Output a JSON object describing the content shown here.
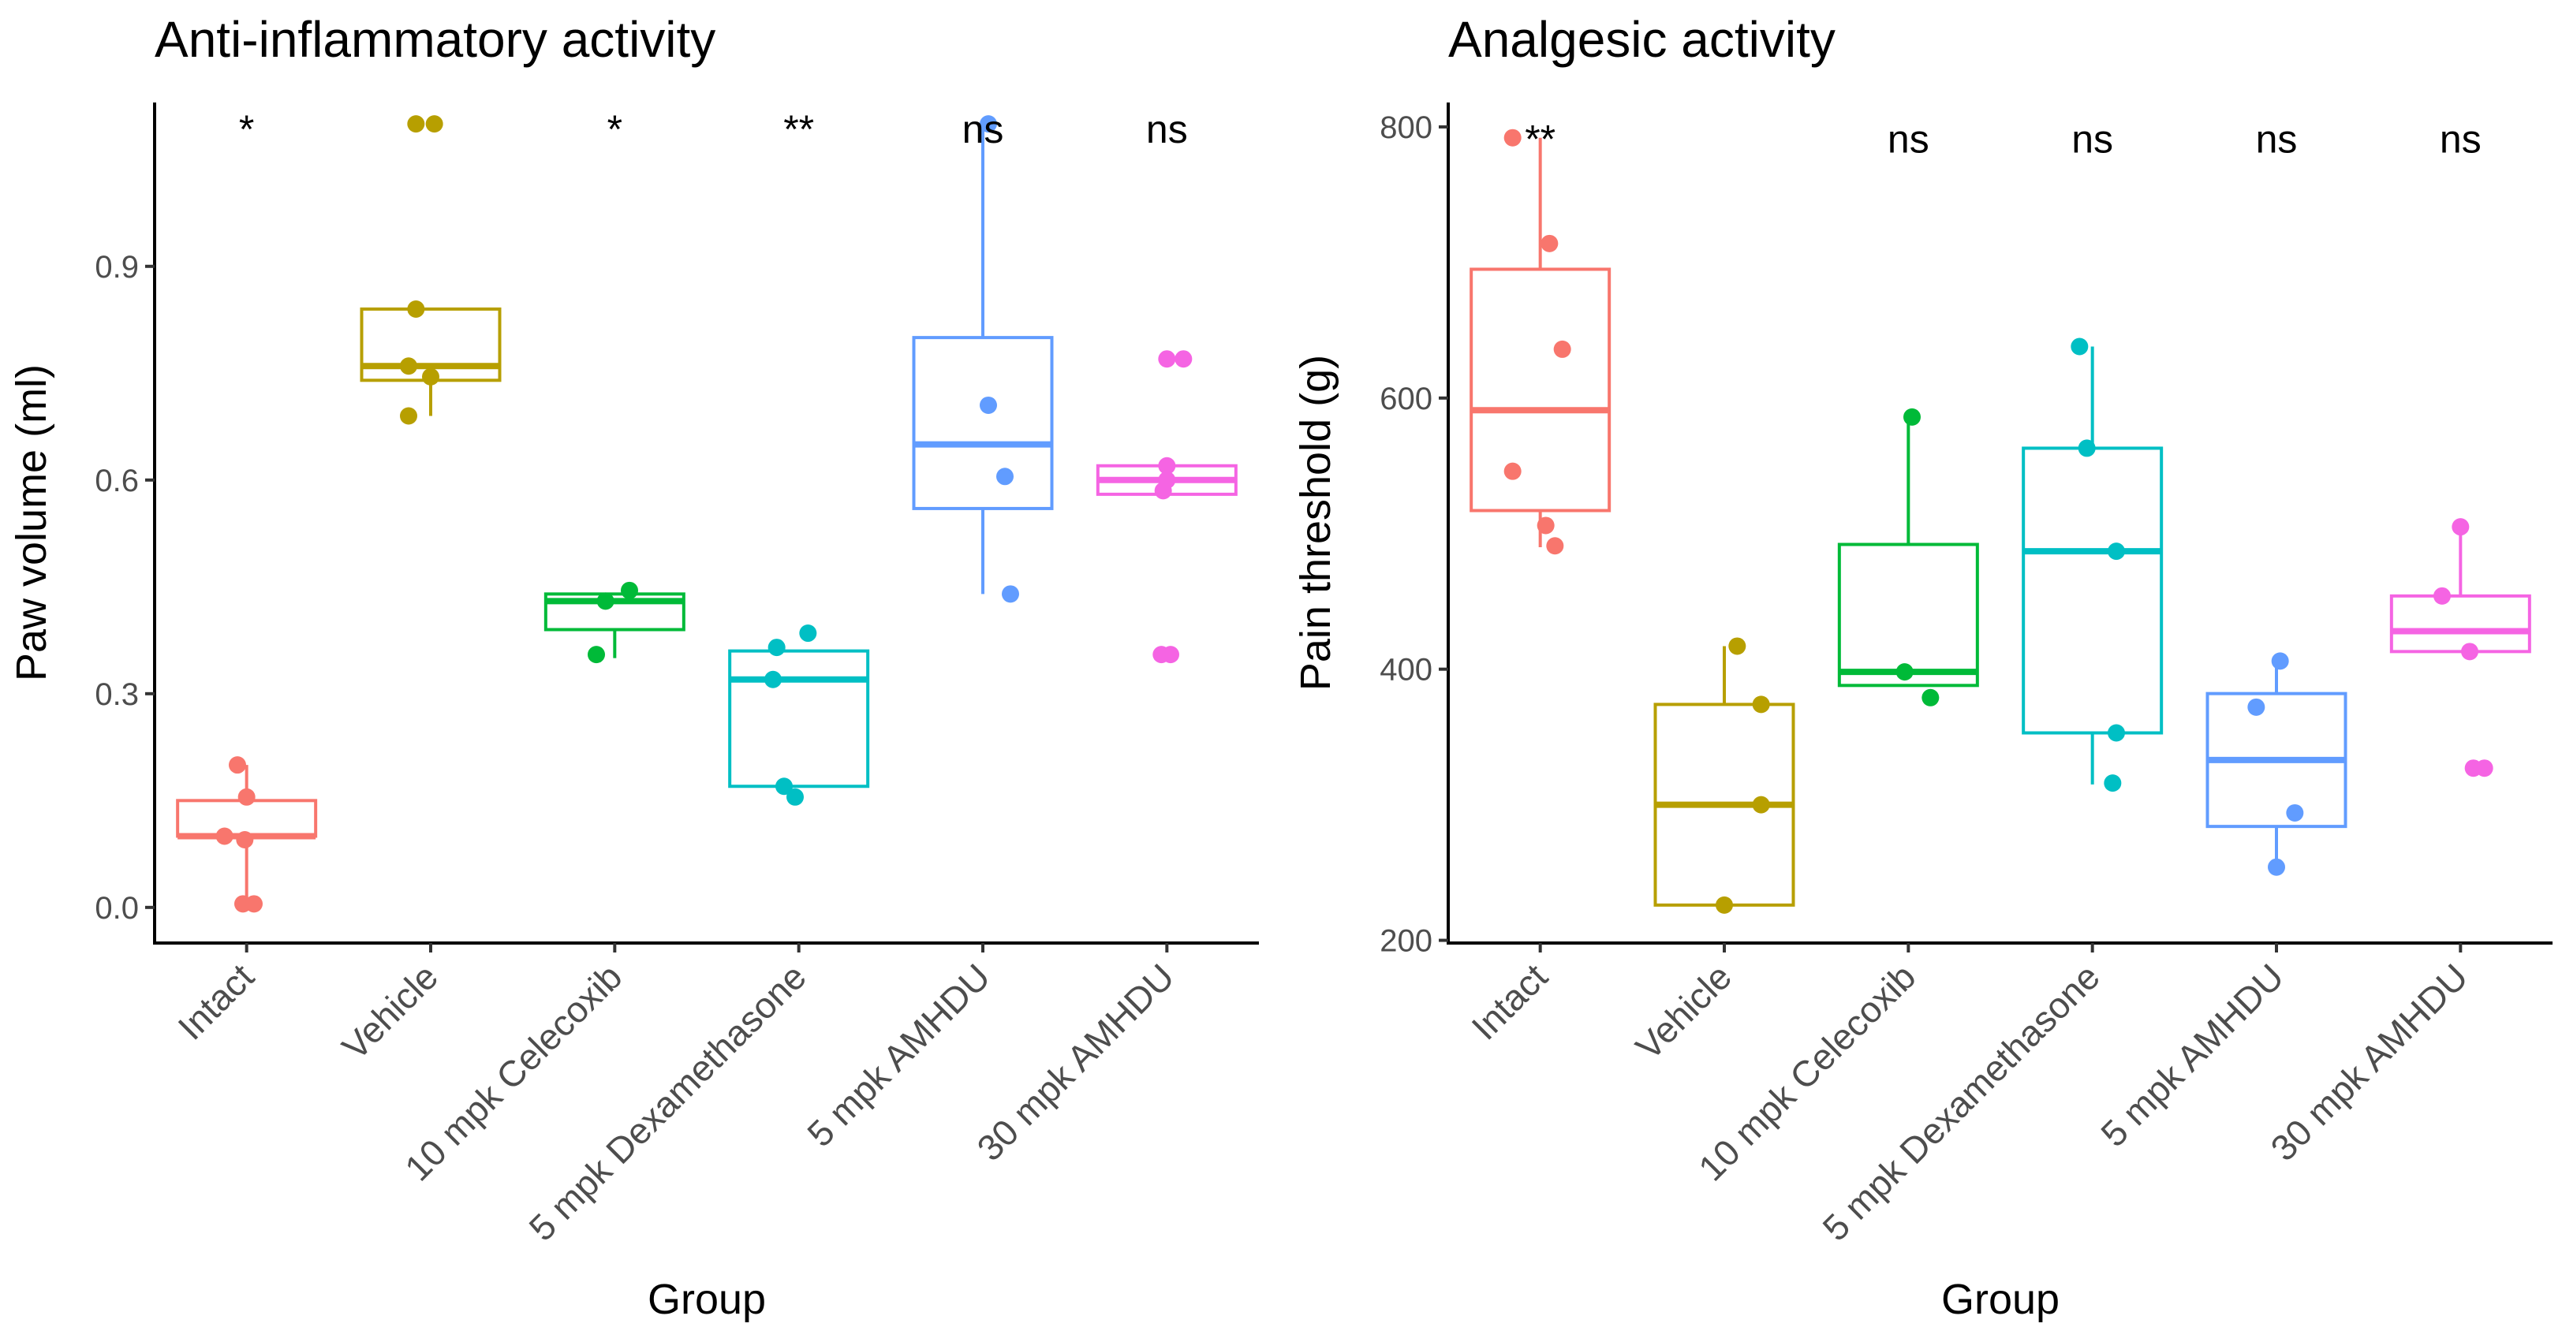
{
  "chart_data": [
    {
      "type": "box",
      "title": "Anti-inflammatory activity",
      "xlabel": "Group",
      "ylabel": "Paw volume (ml)",
      "ylim": [
        -0.05,
        1.13
      ],
      "yticks": [
        0.0,
        0.3,
        0.6,
        0.9
      ],
      "ytick_labels": [
        "0.0",
        "0.3",
        "0.6",
        "0.9"
      ],
      "categories": [
        "Intact",
        "Vehicle",
        "10 mpk Celecoxib",
        "5 mpk Dexamethasone",
        "5 mpk AMHDU",
        "30 mpk AMHDU"
      ],
      "colors": [
        "#F8766D",
        "#B79F00",
        "#00BA38",
        "#00BFC4",
        "#619CFF",
        "#F564E3"
      ],
      "significance": [
        "*",
        "",
        "*",
        "**",
        "ns",
        "ns"
      ],
      "sig_y": 1.1,
      "boxes": [
        {
          "min": 0.0,
          "q1": 0.1,
          "median": 0.1,
          "q3": 0.15,
          "max": 0.2
        },
        {
          "min": 0.69,
          "q1": 0.74,
          "median": 0.76,
          "q3": 0.84,
          "max": 0.84
        },
        {
          "min": 0.35,
          "q1": 0.39,
          "median": 0.43,
          "q3": 0.44,
          "max": 0.44
        },
        {
          "min": 0.17,
          "q1": 0.17,
          "median": 0.32,
          "q3": 0.36,
          "max": 0.36
        },
        {
          "min": 0.44,
          "q1": 0.56,
          "median": 0.65,
          "q3": 0.8,
          "max": 1.1
        },
        {
          "min": 0.58,
          "q1": 0.58,
          "median": 0.6,
          "q3": 0.62,
          "max": 0.62
        }
      ],
      "points": [
        [
          [
            -0.05,
            0.2
          ],
          [
            0.0,
            0.155
          ],
          [
            -0.12,
            0.1
          ],
          [
            -0.01,
            0.095
          ],
          [
            -0.02,
            0.005
          ],
          [
            0.04,
            0.005
          ]
        ],
        [
          [
            -0.08,
            1.1
          ],
          [
            0.02,
            1.1
          ],
          [
            -0.08,
            0.84
          ],
          [
            -0.12,
            0.76
          ],
          [
            0.0,
            0.745
          ],
          [
            -0.12,
            0.69
          ]
        ],
        [
          [
            -0.05,
            0.43
          ],
          [
            0.08,
            0.445
          ],
          [
            -0.1,
            0.355
          ]
        ],
        [
          [
            -0.12,
            0.365
          ],
          [
            0.05,
            0.385
          ],
          [
            -0.14,
            0.32
          ],
          [
            -0.08,
            0.17
          ],
          [
            -0.02,
            0.155
          ]
        ],
        [
          [
            0.03,
            1.1
          ],
          [
            0.03,
            0.705
          ],
          [
            0.12,
            0.605
          ],
          [
            0.15,
            0.44
          ]
        ],
        [
          [
            0.0,
            0.77
          ],
          [
            0.09,
            0.77
          ],
          [
            0.0,
            0.62
          ],
          [
            0.0,
            0.6
          ],
          [
            -0.02,
            0.585
          ],
          [
            -0.03,
            0.355
          ],
          [
            0.02,
            0.355
          ]
        ]
      ]
    },
    {
      "type": "box",
      "title": "Analgesic activity",
      "xlabel": "Group",
      "ylabel": "Pain threshold (g)",
      "ylim": [
        198,
        818
      ],
      "yticks": [
        200,
        400,
        600,
        800
      ],
      "ytick_labels": [
        "200",
        "400",
        "600",
        "800"
      ],
      "categories": [
        "Intact",
        "Vehicle",
        "10 mpk Celecoxib",
        "5 mpk Dexamethasone",
        "5 mpk AMHDU",
        "30 mpk AMHDU"
      ],
      "colors": [
        "#F8766D",
        "#B79F00",
        "#00BA38",
        "#00BFC4",
        "#619CFF",
        "#F564E3"
      ],
      "significance": [
        "**",
        "",
        "ns",
        "ns",
        "ns",
        "ns"
      ],
      "sig_y": 795,
      "boxes": [
        {
          "min": 490,
          "q1": 517,
          "median": 591,
          "q3": 695,
          "max": 792
        },
        {
          "min": 226,
          "q1": 226,
          "median": 300,
          "q3": 374,
          "max": 417
        },
        {
          "min": 388,
          "q1": 388,
          "median": 398,
          "q3": 492,
          "max": 586
        },
        {
          "min": 315,
          "q1": 353,
          "median": 487,
          "q3": 563,
          "max": 638
        },
        {
          "min": 253,
          "q1": 284,
          "median": 333,
          "q3": 382,
          "max": 406
        },
        {
          "min": 413,
          "q1": 413,
          "median": 428,
          "q3": 454,
          "max": 505
        }
      ],
      "points": [
        [
          [
            -0.15,
            792
          ],
          [
            0.05,
            714
          ],
          [
            0.12,
            636
          ],
          [
            -0.15,
            546
          ],
          [
            0.03,
            506
          ],
          [
            0.08,
            491
          ]
        ],
        [
          [
            0.07,
            417
          ],
          [
            0.2,
            374
          ],
          [
            0.2,
            300
          ],
          [
            0.0,
            226
          ]
        ],
        [
          [
            0.02,
            586
          ],
          [
            -0.02,
            398
          ],
          [
            0.12,
            379
          ]
        ],
        [
          [
            -0.07,
            638
          ],
          [
            -0.03,
            563
          ],
          [
            0.13,
            487
          ],
          [
            0.13,
            353
          ],
          [
            0.11,
            316
          ]
        ],
        [
          [
            -0.11,
            372
          ],
          [
            0.02,
            406
          ],
          [
            0.1,
            294
          ],
          [
            0.0,
            254
          ]
        ],
        [
          [
            -0.1,
            454
          ],
          [
            0.0,
            505
          ],
          [
            0.05,
            413
          ],
          [
            0.07,
            327
          ],
          [
            0.13,
            327
          ]
        ]
      ]
    }
  ]
}
